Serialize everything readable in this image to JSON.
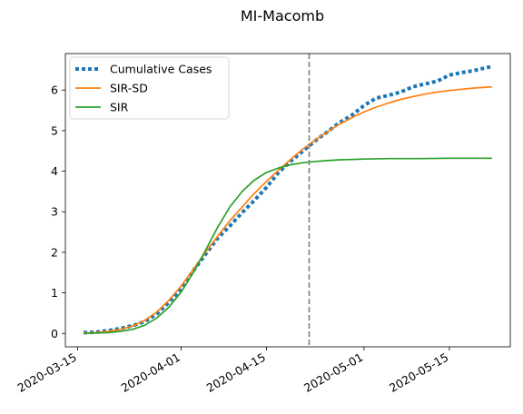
{
  "chart_data": {
    "type": "line",
    "title": "MI-Macomb",
    "xlabel": "",
    "ylabel": "",
    "x_tick_labels": [
      "2020-03-15",
      "2020-04-01",
      "2020-04-15",
      "2020-05-01",
      "2020-05-15"
    ],
    "y_tick_labels": [
      "0",
      "1",
      "2",
      "3",
      "4",
      "5",
      "6"
    ],
    "xlim": [
      "2020-03-13",
      "2020-05-25"
    ],
    "ylim": [
      -0.33,
      6.9
    ],
    "grid": false,
    "legend_position": "top-left",
    "vline": {
      "x": "2020-04-22",
      "style": "dashed",
      "color": "#7f7f7f"
    },
    "series": [
      {
        "name": "Cumulative Cases",
        "color": "#1f77b4",
        "style": "dotted",
        "points": [
          [
            "2020-03-16",
            0.02
          ],
          [
            "2020-03-18",
            0.03
          ],
          [
            "2020-03-20",
            0.07
          ],
          [
            "2020-03-22",
            0.12
          ],
          [
            "2020-03-24",
            0.19
          ],
          [
            "2020-03-26",
            0.29
          ],
          [
            "2020-03-28",
            0.48
          ],
          [
            "2020-03-30",
            0.77
          ],
          [
            "2020-04-01",
            1.1
          ],
          [
            "2020-04-03",
            1.55
          ],
          [
            "2020-04-05",
            1.95
          ],
          [
            "2020-04-07",
            2.35
          ],
          [
            "2020-04-09",
            2.65
          ],
          [
            "2020-04-11",
            2.98
          ],
          [
            "2020-04-13",
            3.28
          ],
          [
            "2020-04-15",
            3.6
          ],
          [
            "2020-04-17",
            3.97
          ],
          [
            "2020-04-19",
            4.25
          ],
          [
            "2020-04-21",
            4.5
          ],
          [
            "2020-04-23",
            4.75
          ],
          [
            "2020-04-25",
            4.97
          ],
          [
            "2020-04-27",
            5.2
          ],
          [
            "2020-04-29",
            5.38
          ],
          [
            "2020-05-01",
            5.62
          ],
          [
            "2020-05-03",
            5.8
          ],
          [
            "2020-05-05",
            5.87
          ],
          [
            "2020-05-07",
            5.95
          ],
          [
            "2020-05-09",
            6.08
          ],
          [
            "2020-05-11",
            6.15
          ],
          [
            "2020-05-13",
            6.22
          ],
          [
            "2020-05-15",
            6.37
          ],
          [
            "2020-05-17",
            6.43
          ],
          [
            "2020-05-19",
            6.48
          ],
          [
            "2020-05-21",
            6.55
          ],
          [
            "2020-05-22",
            6.58
          ]
        ]
      },
      {
        "name": "SIR-SD",
        "color": "#ff7f0e",
        "style": "solid",
        "points": [
          [
            "2020-03-16",
            0.01
          ],
          [
            "2020-03-18",
            0.02
          ],
          [
            "2020-03-20",
            0.05
          ],
          [
            "2020-03-22",
            0.1
          ],
          [
            "2020-03-24",
            0.18
          ],
          [
            "2020-03-26",
            0.32
          ],
          [
            "2020-03-28",
            0.53
          ],
          [
            "2020-03-30",
            0.82
          ],
          [
            "2020-04-01",
            1.17
          ],
          [
            "2020-04-03",
            1.58
          ],
          [
            "2020-04-05",
            2.0
          ],
          [
            "2020-04-07",
            2.4
          ],
          [
            "2020-04-09",
            2.78
          ],
          [
            "2020-04-11",
            3.12
          ],
          [
            "2020-04-13",
            3.45
          ],
          [
            "2020-04-15",
            3.75
          ],
          [
            "2020-04-17",
            4.03
          ],
          [
            "2020-04-19",
            4.3
          ],
          [
            "2020-04-21",
            4.55
          ],
          [
            "2020-04-23",
            4.77
          ],
          [
            "2020-04-25",
            4.97
          ],
          [
            "2020-04-27",
            5.16
          ],
          [
            "2020-04-29",
            5.32
          ],
          [
            "2020-05-01",
            5.46
          ],
          [
            "2020-05-03",
            5.58
          ],
          [
            "2020-05-05",
            5.68
          ],
          [
            "2020-05-07",
            5.77
          ],
          [
            "2020-05-09",
            5.84
          ],
          [
            "2020-05-11",
            5.9
          ],
          [
            "2020-05-13",
            5.95
          ],
          [
            "2020-05-15",
            5.99
          ],
          [
            "2020-05-17",
            6.02
          ],
          [
            "2020-05-19",
            6.05
          ],
          [
            "2020-05-21",
            6.07
          ],
          [
            "2020-05-22",
            6.08
          ]
        ]
      },
      {
        "name": "SIR",
        "color": "#2ca02c",
        "style": "solid",
        "points": [
          [
            "2020-03-16",
            0.0
          ],
          [
            "2020-03-18",
            0.01
          ],
          [
            "2020-03-20",
            0.02
          ],
          [
            "2020-03-22",
            0.05
          ],
          [
            "2020-03-24",
            0.1
          ],
          [
            "2020-03-26",
            0.2
          ],
          [
            "2020-03-28",
            0.38
          ],
          [
            "2020-03-30",
            0.65
          ],
          [
            "2020-04-01",
            1.02
          ],
          [
            "2020-04-03",
            1.5
          ],
          [
            "2020-04-05",
            2.05
          ],
          [
            "2020-04-07",
            2.62
          ],
          [
            "2020-04-09",
            3.12
          ],
          [
            "2020-04-11",
            3.5
          ],
          [
            "2020-04-13",
            3.78
          ],
          [
            "2020-04-15",
            3.97
          ],
          [
            "2020-04-17",
            4.08
          ],
          [
            "2020-04-19",
            4.16
          ],
          [
            "2020-04-21",
            4.21
          ],
          [
            "2020-04-23",
            4.24
          ],
          [
            "2020-04-25",
            4.26
          ],
          [
            "2020-04-27",
            4.28
          ],
          [
            "2020-04-29",
            4.29
          ],
          [
            "2020-05-01",
            4.3
          ],
          [
            "2020-05-05",
            4.31
          ],
          [
            "2020-05-10",
            4.31
          ],
          [
            "2020-05-15",
            4.32
          ],
          [
            "2020-05-22",
            4.32
          ]
        ]
      }
    ]
  }
}
